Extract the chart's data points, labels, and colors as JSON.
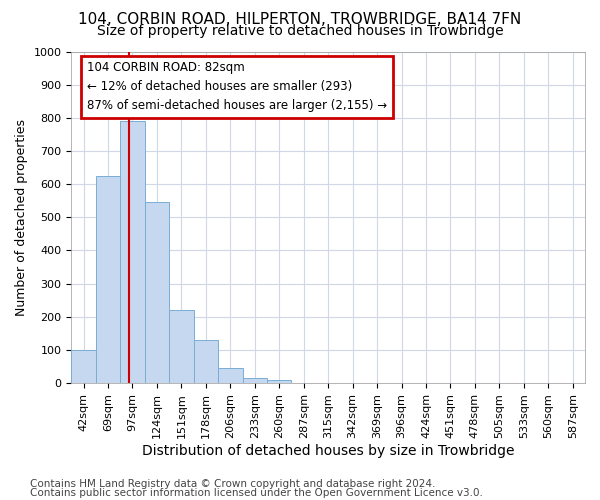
{
  "title_line1": "104, CORBIN ROAD, HILPERTON, TROWBRIDGE, BA14 7FN",
  "title_line2": "Size of property relative to detached houses in Trowbridge",
  "xlabel": "Distribution of detached houses by size in Trowbridge",
  "ylabel": "Number of detached properties",
  "bar_labels": [
    "42sqm",
    "69sqm",
    "97sqm",
    "124sqm",
    "151sqm",
    "178sqm",
    "206sqm",
    "233sqm",
    "260sqm",
    "287sqm",
    "315sqm",
    "342sqm",
    "369sqm",
    "396sqm",
    "424sqm",
    "451sqm",
    "478sqm",
    "505sqm",
    "533sqm",
    "560sqm",
    "587sqm"
  ],
  "bar_values": [
    100,
    625,
    790,
    545,
    220,
    130,
    45,
    15,
    10,
    0,
    0,
    0,
    0,
    0,
    0,
    0,
    0,
    0,
    0,
    0,
    0
  ],
  "bar_color": "#c5d8f0",
  "bar_edge_color": "#7aadd4",
  "annotation_text": "104 CORBIN ROAD: 82sqm\n← 12% of detached houses are smaller (293)\n87% of semi-detached houses are larger (2,155) →",
  "annotation_box_color": "#ffffff",
  "annotation_box_edge": "#cc0000",
  "red_line_color": "#cc0000",
  "red_line_x": 1.85,
  "ylim": [
    0,
    1000
  ],
  "yticks": [
    0,
    100,
    200,
    300,
    400,
    500,
    600,
    700,
    800,
    900,
    1000
  ],
  "footer_line1": "Contains HM Land Registry data © Crown copyright and database right 2024.",
  "footer_line2": "Contains public sector information licensed under the Open Government Licence v3.0.",
  "bg_color": "#ffffff",
  "plot_bg_color": "#ffffff",
  "grid_color": "#d0d8e8",
  "title1_fontsize": 11,
  "title2_fontsize": 10,
  "xlabel_fontsize": 10,
  "ylabel_fontsize": 9,
  "tick_fontsize": 8,
  "footer_fontsize": 7.5,
  "annotation_fontsize": 8.5
}
